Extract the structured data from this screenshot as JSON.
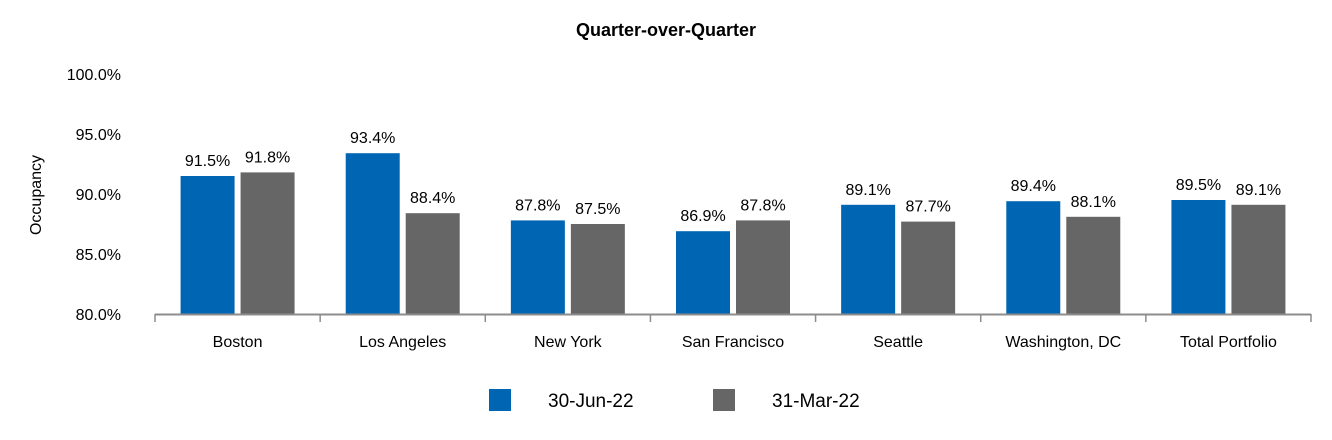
{
  "chart_data": {
    "type": "bar",
    "title": "Quarter-over-Quarter",
    "ylabel": "Occupancy",
    "xlabel": "",
    "ylim": [
      80,
      100
    ],
    "yticks": [
      "80.0%",
      "85.0%",
      "90.0%",
      "95.0%",
      "100.0%"
    ],
    "categories": [
      "Boston",
      "Los Angeles",
      "New York",
      "San Francisco",
      "Seattle",
      "Washington, DC",
      "Total Portfolio"
    ],
    "series": [
      {
        "name": "30-Jun-22",
        "color": "#0066b3",
        "values": [
          91.5,
          93.4,
          87.8,
          86.9,
          89.1,
          89.4,
          89.5
        ],
        "labels": [
          "91.5%",
          "93.4%",
          "87.8%",
          "86.9%",
          "89.1%",
          "89.4%",
          "89.5%"
        ]
      },
      {
        "name": "31-Mar-22",
        "color": "#666666",
        "values": [
          91.8,
          88.4,
          87.5,
          87.8,
          87.7,
          88.1,
          89.1
        ],
        "labels": [
          "91.8%",
          "88.4%",
          "87.5%",
          "87.8%",
          "87.7%",
          "88.1%",
          "89.1%"
        ]
      }
    ],
    "grid": false,
    "legend": "bottom-center"
  }
}
